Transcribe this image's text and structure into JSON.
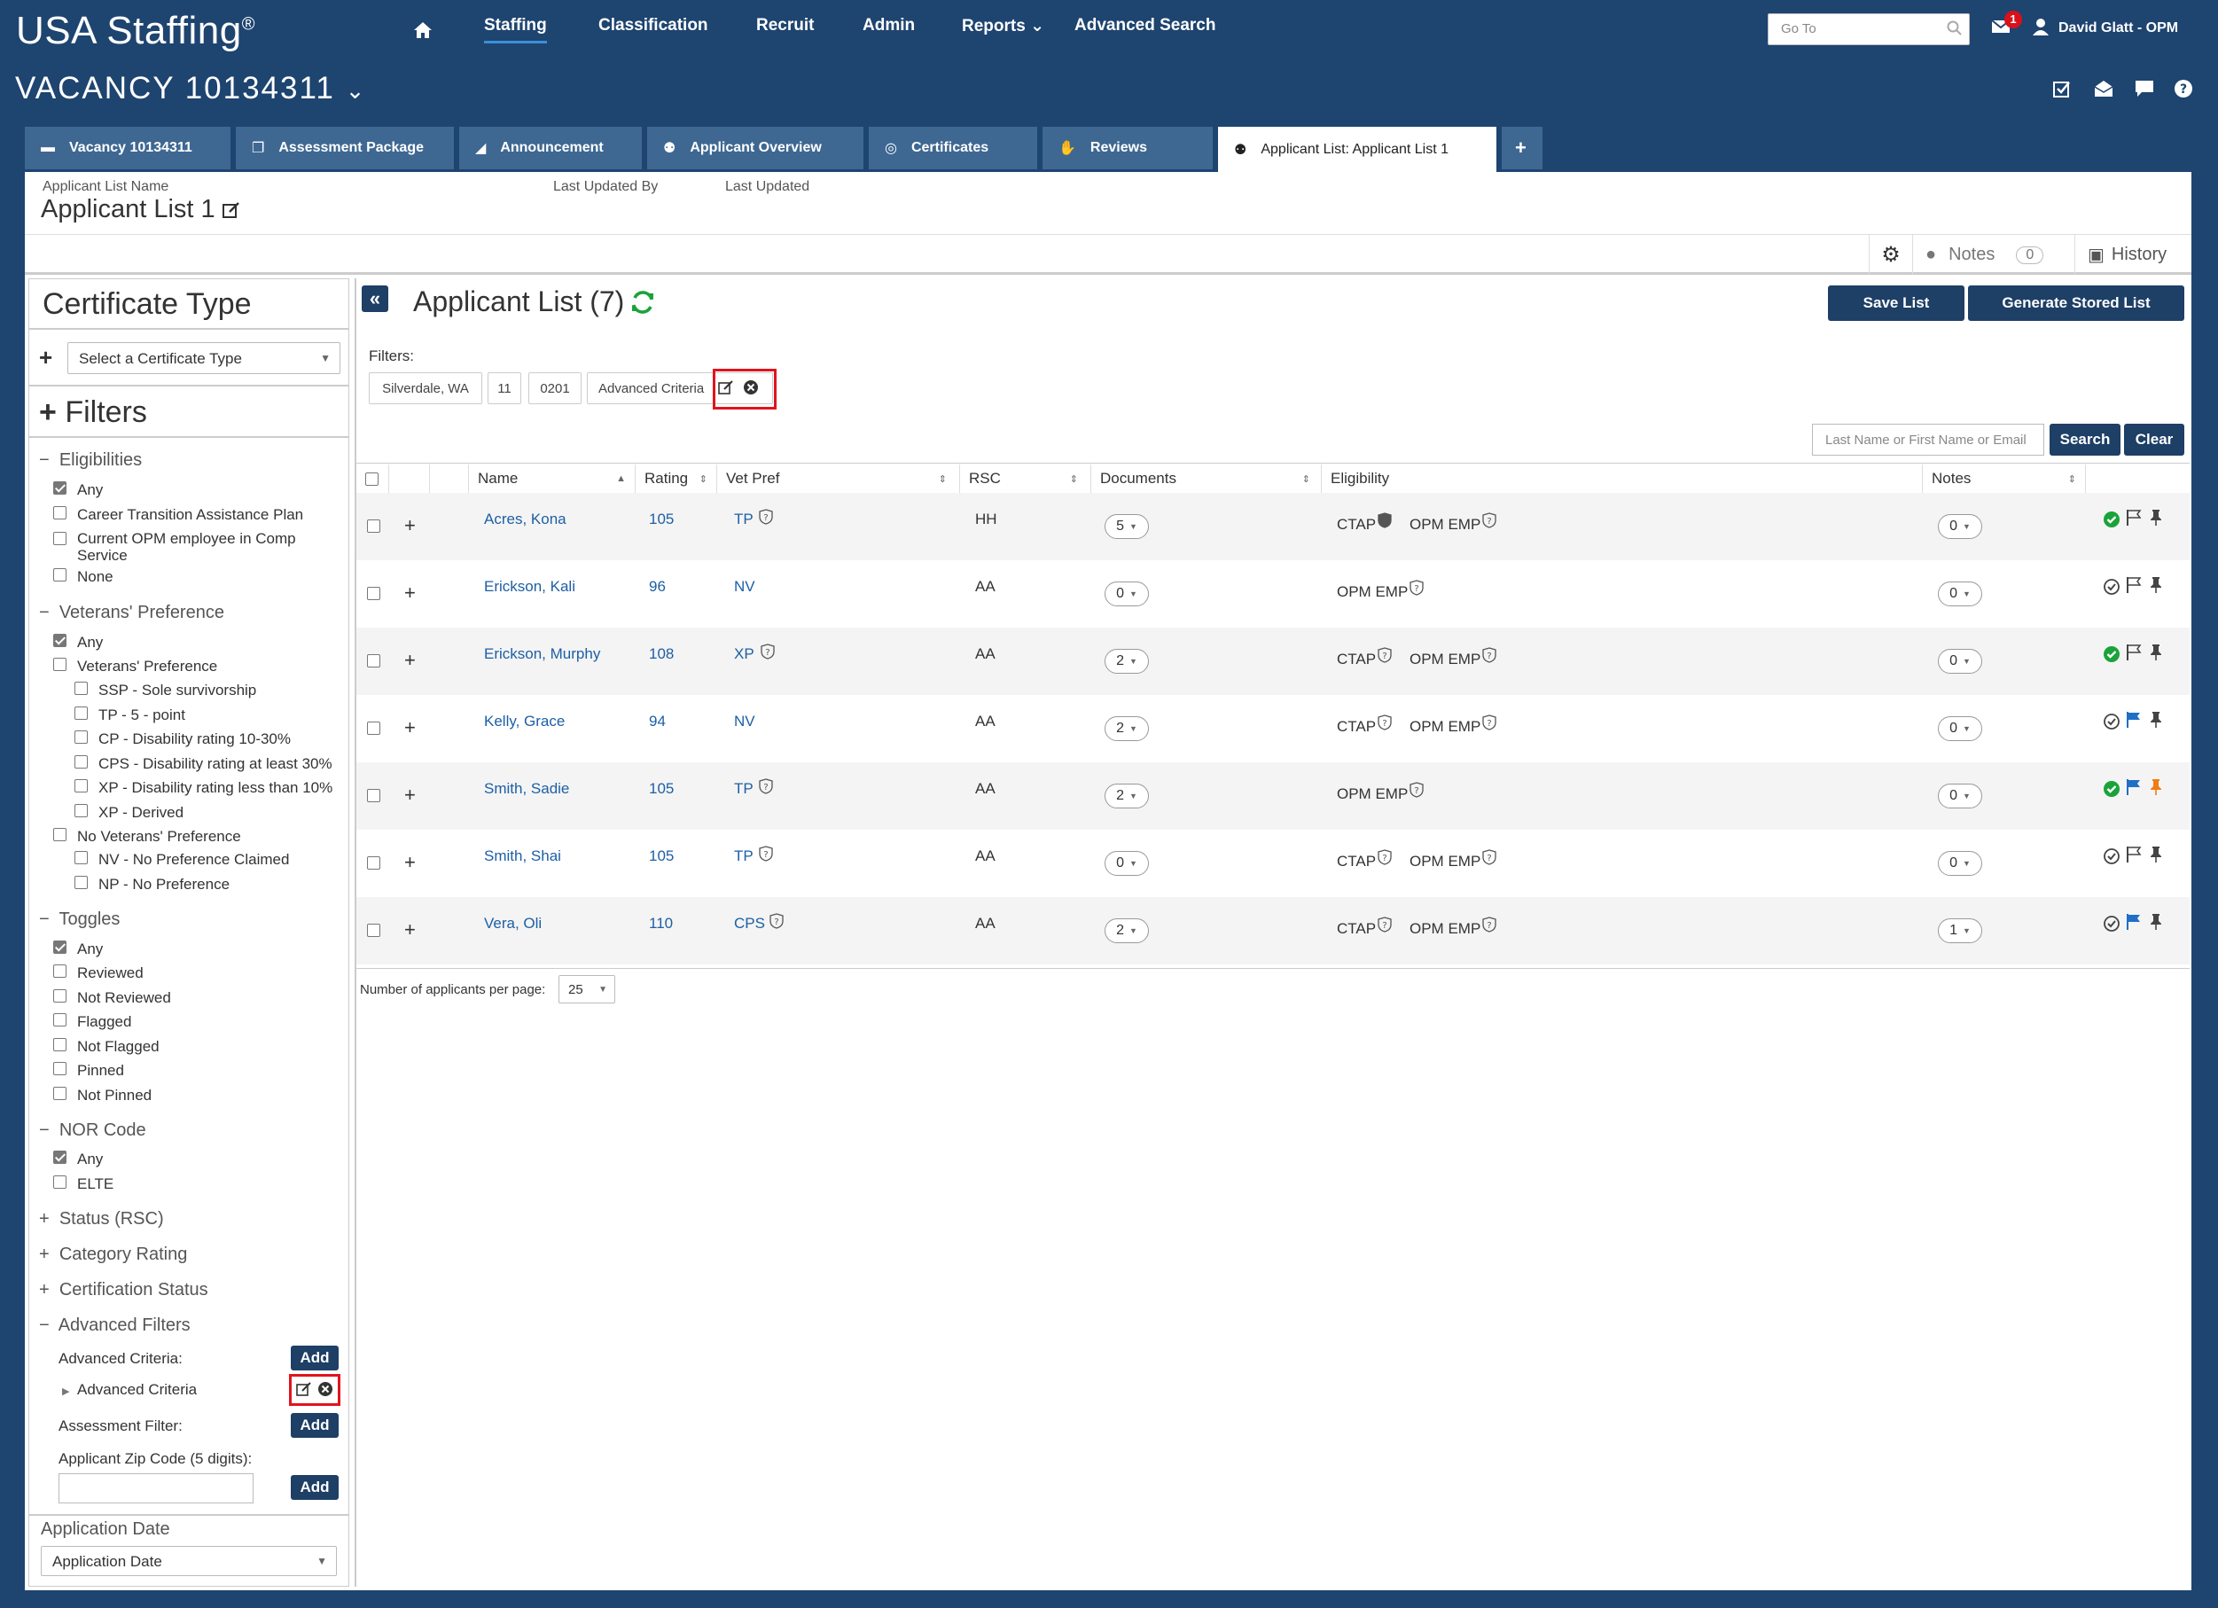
{
  "app": {
    "logo": "USA Staffing",
    "logo_mark": "®"
  },
  "nav": {
    "items": [
      "Staffing",
      "Classification",
      "Recruit",
      "Admin",
      "Reports",
      "Advanced Search"
    ],
    "active": "Staffing",
    "goto_placeholder": "Go To",
    "mail_badge": "1",
    "user": "David Glatt - OPM"
  },
  "vacancy": {
    "title": "VACANCY 10134311"
  },
  "tabs": [
    "Vacancy 10134311",
    "Assessment Package",
    "Announcement",
    "Applicant Overview",
    "Certificates",
    "Reviews",
    "Applicant List: Applicant List 1"
  ],
  "header": {
    "name_label": "Applicant List Name",
    "name_value": "Applicant List 1",
    "updated_by_label": "Last Updated By",
    "updated_label": "Last Updated",
    "notes_label": "Notes",
    "notes_count": "0",
    "history_label": "History"
  },
  "sidebar": {
    "cert_title": "Certificate Type",
    "cert_select": "Select a Certificate Type",
    "filters_title": "Filters",
    "eligibilities": {
      "title": "Eligibilities",
      "items": [
        "Any",
        "Career Transition Assistance Plan",
        "Current OPM employee in Comp Service",
        "None"
      ]
    },
    "vets": {
      "title": "Veterans' Preference",
      "items": [
        "Any",
        "Veterans' Preference",
        "SSP - Sole survivorship",
        "TP - 5 - point",
        "CP - Disability rating 10-30%",
        "CPS - Disability rating at least 30%",
        "XP - Disability rating less than 10%",
        "XP - Derived",
        "No Veterans' Preference",
        "NV - No Preference Claimed",
        "NP - No Preference"
      ]
    },
    "toggles": {
      "title": "Toggles",
      "items": [
        "Any",
        "Reviewed",
        "Not Reviewed",
        "Flagged",
        "Not Flagged",
        "Pinned",
        "Not Pinned"
      ]
    },
    "nor": {
      "title": "NOR Code",
      "items": [
        "Any",
        "ELTE"
      ]
    },
    "collapsed": [
      "Status (RSC)",
      "Category Rating",
      "Certification Status"
    ],
    "advanced": {
      "title": "Advanced Filters",
      "criteria_label": "Advanced Criteria:",
      "criteria_item": "Advanced Criteria",
      "assessment_label": "Assessment Filter:",
      "zip_label": "Applicant Zip Code (5 digits):",
      "add": "Add"
    },
    "app_date": {
      "title": "Application Date",
      "select": "Application Date"
    }
  },
  "main": {
    "title": "Applicant List (7)",
    "save": "Save List",
    "generate": "Generate Stored List",
    "filters_label": "Filters:",
    "chips": [
      "Silverdale, WA",
      "11",
      "0201",
      "Advanced Criteria"
    ],
    "search_placeholder": "Last Name or First Name or Email",
    "search": "Search",
    "clear": "Clear",
    "columns": [
      "Name",
      "Rating",
      "Vet Pref",
      "RSC",
      "Documents",
      "Eligibility",
      "Notes"
    ],
    "rows": [
      {
        "name": "Acres, Kona",
        "rating": "105",
        "vet": "TP",
        "rsc": "HH",
        "docs": "5",
        "elig": [
          "CTAP",
          "OPM EMP"
        ],
        "notes": "0",
        "reviewed": true,
        "flag": "none",
        "pin": "none"
      },
      {
        "name": "Erickson, Kali",
        "rating": "96",
        "vet": "NV",
        "rsc": "AA",
        "docs": "0",
        "elig": [
          "OPM EMP"
        ],
        "notes": "0",
        "reviewed": false,
        "flag": "none",
        "pin": "none"
      },
      {
        "name": "Erickson, Murphy",
        "rating": "108",
        "vet": "XP",
        "rsc": "AA",
        "docs": "2",
        "elig": [
          "CTAP",
          "OPM EMP"
        ],
        "notes": "0",
        "reviewed": true,
        "flag": "none",
        "pin": "none"
      },
      {
        "name": "Kelly, Grace",
        "rating": "94",
        "vet": "NV",
        "rsc": "AA",
        "docs": "2",
        "elig": [
          "CTAP",
          "OPM EMP"
        ],
        "notes": "0",
        "reviewed": false,
        "flag": "flagged",
        "pin": "none"
      },
      {
        "name": "Smith, Sadie",
        "rating": "105",
        "vet": "TP",
        "rsc": "AA",
        "docs": "2",
        "elig": [
          "OPM EMP"
        ],
        "notes": "0",
        "reviewed": true,
        "flag": "flagged",
        "pin": "pinned"
      },
      {
        "name": "Smith, Shai",
        "rating": "105",
        "vet": "TP",
        "rsc": "AA",
        "docs": "0",
        "elig": [
          "CTAP",
          "OPM EMP"
        ],
        "notes": "0",
        "reviewed": false,
        "flag": "none",
        "pin": "none"
      },
      {
        "name": "Vera, Oli",
        "rating": "110",
        "vet": "CPS",
        "rsc": "AA",
        "docs": "2",
        "elig": [
          "CTAP",
          "OPM EMP"
        ],
        "notes": "1",
        "reviewed": false,
        "flag": "flagged",
        "pin": "none"
      }
    ],
    "per_page_label": "Number of applicants per page:",
    "per_page": "25"
  },
  "colors": {
    "navy": "#1e4470",
    "tab": "#3e6892",
    "button": "#1e3f66",
    "link": "#1d5fa5",
    "green": "#1aa33a",
    "flag_blue": "#1f6fc7",
    "pin_orange": "#ef7d12",
    "highlight": "#e0141e"
  }
}
